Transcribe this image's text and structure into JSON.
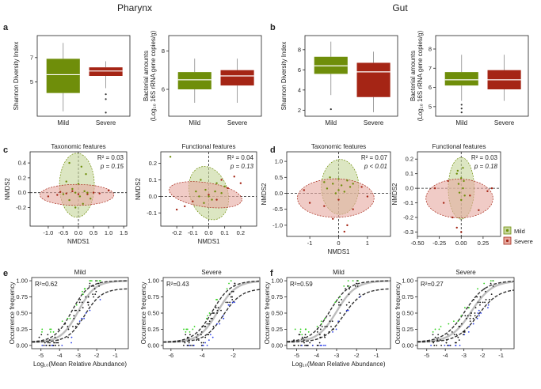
{
  "headers": {
    "left": "Pharynx",
    "right": "Gut"
  },
  "panel_labels": {
    "a": "a",
    "b": "b",
    "c": "c",
    "d": "d",
    "e": "e",
    "f": "f"
  },
  "colors": {
    "mild": "#6f8e0a",
    "severe": "#a52515",
    "mild_fill": "#c5d69a",
    "severe_fill": "#e6a9a0",
    "green_pts": "#2fd11b",
    "blue_pts": "#2a3ee8",
    "fit": "#bdbdbd"
  },
  "legend": {
    "items": [
      {
        "label": "Mild"
      },
      {
        "label": "Severe"
      }
    ]
  },
  "chart_data": [
    {
      "id": "a1",
      "type": "box",
      "ylabel": "Shannon Diversity Index",
      "ylim": [
        2.2,
        8.8
      ],
      "yticks": [
        5,
        7
      ],
      "categories": [
        "Mild",
        "Severe"
      ],
      "boxes": [
        {
          "whisker_low": 2.6,
          "q1": 4.1,
          "median": 5.6,
          "q3": 6.9,
          "whisker_high": 8.2
        },
        {
          "whisker_low": 4.5,
          "q1": 5.5,
          "median": 5.9,
          "q3": 6.2,
          "whisker_high": 6.7,
          "outliers": [
            4.0,
            3.6,
            2.5
          ]
        }
      ]
    },
    {
      "id": "a2",
      "type": "box",
      "ylabel": "Bacterial amounts",
      "ylabel2": "(Log₁₀ 16S rRNA gene copies/g)",
      "ylim": [
        4.6,
        8.8
      ],
      "yticks": [
        6,
        8
      ],
      "categories": [
        "Mild",
        "Severe"
      ],
      "boxes": [
        {
          "whisker_low": 5.3,
          "q1": 6.0,
          "median": 6.5,
          "q3": 6.9,
          "whisker_high": 7.6
        },
        {
          "whisker_low": 5.3,
          "q1": 6.2,
          "median": 6.7,
          "q3": 7.0,
          "whisker_high": 7.6
        }
      ]
    },
    {
      "id": "b1",
      "type": "box",
      "ylabel": "Shannon Diversity Index",
      "ylim": [
        1.4,
        9.4
      ],
      "yticks": [
        2,
        4,
        6,
        8
      ],
      "categories": [
        "Mild",
        "Severe"
      ],
      "boxes": [
        {
          "whisker_low": 3.5,
          "q1": 5.6,
          "median": 6.4,
          "q3": 7.3,
          "whisker_high": 8.8,
          "outliers": [
            2.1
          ]
        },
        {
          "whisker_low": 1.8,
          "q1": 3.3,
          "median": 5.8,
          "q3": 6.7,
          "whisker_high": 7.8
        }
      ]
    },
    {
      "id": "b2",
      "type": "box",
      "ylabel": "Bacterial amounts",
      "ylabel2": "(Log₁₀ 16S rRNA gene copies/g)",
      "ylim": [
        4.5,
        8.7
      ],
      "yticks": [
        5,
        6,
        7,
        8
      ],
      "categories": [
        "Mild",
        "Severe"
      ],
      "boxes": [
        {
          "whisker_low": 5.3,
          "q1": 6.1,
          "median": 6.4,
          "q3": 6.8,
          "whisker_high": 7.7,
          "outliers": [
            5.1,
            4.9,
            4.7
          ]
        },
        {
          "whisker_low": 5.3,
          "q1": 5.9,
          "median": 6.4,
          "q3": 6.9,
          "whisker_high": 7.7
        }
      ]
    },
    {
      "id": "c1",
      "type": "scatter",
      "title": "Taxonomic features",
      "xlabel": "NMDS1",
      "ylabel": "NMDS2",
      "xlim": [
        -1.6,
        1.6
      ],
      "ylim": [
        -0.45,
        0.55
      ],
      "xticks": [
        -1.0,
        -0.5,
        0.0,
        0.5,
        1.0,
        1.5
      ],
      "yticks": [
        -0.2,
        0.0,
        0.2,
        0.4
      ],
      "stats": {
        "r2": "R² = 0.03",
        "p": "p = 0.15"
      },
      "ellipses": [
        {
          "group": "mild",
          "cx": -0.05,
          "cy": 0.1,
          "rx": 0.6,
          "ry": 0.38,
          "angle": 95
        },
        {
          "group": "severe",
          "cx": -0.05,
          "cy": -0.03,
          "rx": 1.4,
          "ry": 0.07,
          "angle": 0
        }
      ],
      "mild_points": [
        [
          -0.3,
          0.4
        ],
        [
          0.1,
          0.35
        ],
        [
          0.25,
          0.25
        ],
        [
          -0.4,
          0.15
        ],
        [
          0.0,
          0.12
        ],
        [
          -0.2,
          0.05
        ],
        [
          0.2,
          0.02
        ],
        [
          -0.5,
          -0.02
        ],
        [
          0.05,
          -0.05
        ],
        [
          -0.1,
          0.0
        ],
        [
          0.3,
          0.0
        ],
        [
          -0.3,
          -0.1
        ],
        [
          0.4,
          -0.08
        ],
        [
          -0.1,
          -0.2
        ],
        [
          0.15,
          -0.15
        ]
      ],
      "severe_points": [
        [
          -1.0,
          -0.05
        ],
        [
          -0.7,
          -0.03
        ],
        [
          -0.4,
          -0.01
        ],
        [
          0.0,
          -0.02
        ],
        [
          0.3,
          -0.02
        ],
        [
          0.7,
          -0.01
        ],
        [
          1.0,
          0.03
        ],
        [
          -0.2,
          0.02
        ],
        [
          0.5,
          0.0
        ],
        [
          -0.6,
          0.01
        ]
      ]
    },
    {
      "id": "c2",
      "type": "scatter",
      "title": "Functional features",
      "xlabel": "NMDS1",
      "ylabel": "NMDS2",
      "xlim": [
        -0.3,
        0.3
      ],
      "ylim": [
        -0.18,
        0.27
      ],
      "xticks": [
        -0.2,
        -0.1,
        0.0,
        0.1,
        0.2
      ],
      "yticks": [
        -0.1,
        0.0,
        0.1,
        0.2
      ],
      "stats": {
        "r2": "R² = 0.04",
        "p": "p = 0.13"
      },
      "ellipses": [
        {
          "group": "mild",
          "cx": 0.0,
          "cy": 0.02,
          "rx": 0.14,
          "ry": 0.09,
          "angle": 60
        },
        {
          "group": "severe",
          "cx": -0.02,
          "cy": 0.01,
          "rx": 0.26,
          "ry": 0.06,
          "angle": -28
        }
      ],
      "mild_points": [
        [
          -0.24,
          0.24
        ],
        [
          -0.05,
          0.1
        ],
        [
          0.05,
          0.08
        ],
        [
          -0.02,
          0.04
        ],
        [
          0.04,
          0.03
        ],
        [
          -0.06,
          0.0
        ],
        [
          0.08,
          0.02
        ],
        [
          0.02,
          -0.02
        ],
        [
          -0.03,
          -0.04
        ],
        [
          0.1,
          0.06
        ],
        [
          0.0,
          0.0
        ],
        [
          -0.08,
          0.03
        ]
      ],
      "severe_points": [
        [
          -0.15,
          -0.06
        ],
        [
          -0.1,
          -0.03
        ],
        [
          0.0,
          0.01
        ],
        [
          0.05,
          -0.02
        ],
        [
          0.12,
          0.05
        ],
        [
          0.2,
          0.08
        ],
        [
          -0.2,
          -0.08
        ],
        [
          0.08,
          0.1
        ],
        [
          0.16,
          0.12
        ]
      ]
    },
    {
      "id": "d1",
      "type": "scatter",
      "title": "Taxonomic features",
      "xlabel": "NMDS1",
      "ylabel": "NMDS2",
      "xlim": [
        -1.8,
        1.8
      ],
      "ylim": [
        -1.35,
        1.3
      ],
      "xticks": [
        -1,
        0,
        1
      ],
      "yticks": [
        -1.0,
        -0.5,
        0.0,
        0.5,
        1.0
      ],
      "stats": {
        "r2": "R² = 0.07",
        "p": "p < 0.01"
      },
      "ellipses": [
        {
          "group": "mild",
          "cx": 0.05,
          "cy": 0.2,
          "rx": 0.75,
          "ry": 0.48,
          "angle": 0
        },
        {
          "group": "severe",
          "cx": -0.1,
          "cy": -0.15,
          "rx": 1.6,
          "ry": 0.95,
          "angle": 0
        }
      ],
      "mild_points": [
        [
          -0.3,
          0.5
        ],
        [
          0.0,
          0.45
        ],
        [
          0.3,
          0.4
        ],
        [
          -0.2,
          0.3
        ],
        [
          0.1,
          0.25
        ],
        [
          0.4,
          0.2
        ],
        [
          -0.4,
          0.15
        ],
        [
          0.0,
          0.1
        ],
        [
          0.2,
          0.05
        ],
        [
          -0.1,
          0.0
        ],
        [
          0.5,
          0.3
        ],
        [
          -0.5,
          0.35
        ]
      ],
      "severe_points": [
        [
          -1.0,
          -0.3
        ],
        [
          -0.5,
          -0.4
        ],
        [
          0.0,
          -0.2
        ],
        [
          0.5,
          -0.5
        ],
        [
          1.0,
          -0.1
        ],
        [
          -0.2,
          -0.8
        ],
        [
          0.3,
          -1.0
        ],
        [
          -1.2,
          0.1
        ],
        [
          0.8,
          0.2
        ],
        [
          0.2,
          -1.2
        ]
      ]
    },
    {
      "id": "d2",
      "type": "scatter",
      "title": "Functional features",
      "xlabel": "",
      "ylabel": "NMDS2",
      "xlim": [
        -0.5,
        0.45
      ],
      "ylim": [
        -0.33,
        0.25
      ],
      "xticks": [
        -0.5,
        -0.25,
        0.0,
        0.25
      ],
      "yticks": [
        -0.3,
        -0.2,
        -0.1,
        0.0,
        0.1,
        0.2
      ],
      "stats": {
        "r2": "R² = 0.03",
        "p": "p = 0.18"
      },
      "ellipses": [
        {
          "group": "mild",
          "cx": 0.0,
          "cy": 0.0,
          "rx": 0.06,
          "ry": 0.17,
          "angle": 0
        },
        {
          "group": "severe",
          "cx": -0.02,
          "cy": -0.07,
          "rx": 0.37,
          "ry": 0.21,
          "angle": 0
        }
      ],
      "mild_points": [
        [
          -0.05,
          0.1
        ],
        [
          0.0,
          0.07
        ],
        [
          0.03,
          0.05
        ],
        [
          -0.03,
          0.03
        ],
        [
          0.02,
          0.0
        ],
        [
          -0.02,
          -0.03
        ],
        [
          0.04,
          -0.05
        ],
        [
          0.0,
          -0.08
        ],
        [
          -0.04,
          0.12
        ],
        [
          0.02,
          0.14
        ]
      ],
      "severe_points": [
        [
          -0.3,
          0.0
        ],
        [
          -0.2,
          -0.1
        ],
        [
          -0.1,
          -0.2
        ],
        [
          0.1,
          -0.05
        ],
        [
          0.2,
          -0.15
        ],
        [
          0.3,
          -0.02
        ],
        [
          -0.05,
          -0.27
        ],
        [
          0.0,
          -0.3
        ],
        [
          0.35,
          0.0
        ],
        [
          -0.15,
          0.05
        ]
      ]
    },
    {
      "id": "e1",
      "type": "scatter",
      "title": "Mild",
      "stat": "R²=0.62",
      "xlabel": "Log₁₀(Mean Relative Abundance)",
      "ylabel": "Occurrence frequency",
      "xlim": [
        -5.5,
        -0.3
      ],
      "ylim": [
        -0.05,
        1.05
      ],
      "xticks": [
        -5,
        -4,
        -3,
        -2,
        -1
      ],
      "yticks": [
        0.0,
        0.25,
        0.5,
        0.75,
        1.0
      ],
      "fit": {
        "midpoint": -3.0,
        "slope": 2.2
      }
    },
    {
      "id": "e2",
      "type": "scatter",
      "title": "Severe",
      "stat": "R²=0.43",
      "xlabel": "",
      "ylabel": "Occurrence frequency",
      "xlim": [
        -6.5,
        -0.3
      ],
      "ylim": [
        -0.05,
        1.05
      ],
      "xticks": [
        -6,
        -4,
        -2
      ],
      "yticks": [
        0.0,
        0.25,
        0.5,
        0.75,
        1.0
      ],
      "fit": {
        "midpoint": -3.0,
        "slope": 1.7
      }
    },
    {
      "id": "f1",
      "type": "scatter",
      "title": "Mild",
      "stat": "R²=0.59",
      "xlabel": "Log₁₀(Mean Relative Abundance)",
      "ylabel": "Occurrence frequency",
      "xlim": [
        -5.5,
        -0.3
      ],
      "ylim": [
        -0.05,
        1.05
      ],
      "xticks": [
        -5,
        -4,
        -3,
        -2,
        -1
      ],
      "yticks": [
        0.0,
        0.25,
        0.5,
        0.75,
        1.0
      ],
      "fit": {
        "midpoint": -3.0,
        "slope": 2.1
      }
    },
    {
      "id": "f2",
      "type": "scatter",
      "title": "Severe",
      "stat": "R²=0.27",
      "xlabel": "",
      "ylabel": "Occurrence frequency",
      "xlim": [
        -5.5,
        -0.3
      ],
      "ylim": [
        -0.05,
        1.05
      ],
      "xticks": [
        -5,
        -4,
        -3,
        -2,
        -1
      ],
      "yticks": [
        0.0,
        0.25,
        0.5,
        0.75,
        1.0
      ],
      "fit": {
        "midpoint": -2.6,
        "slope": 1.8
      }
    }
  ]
}
